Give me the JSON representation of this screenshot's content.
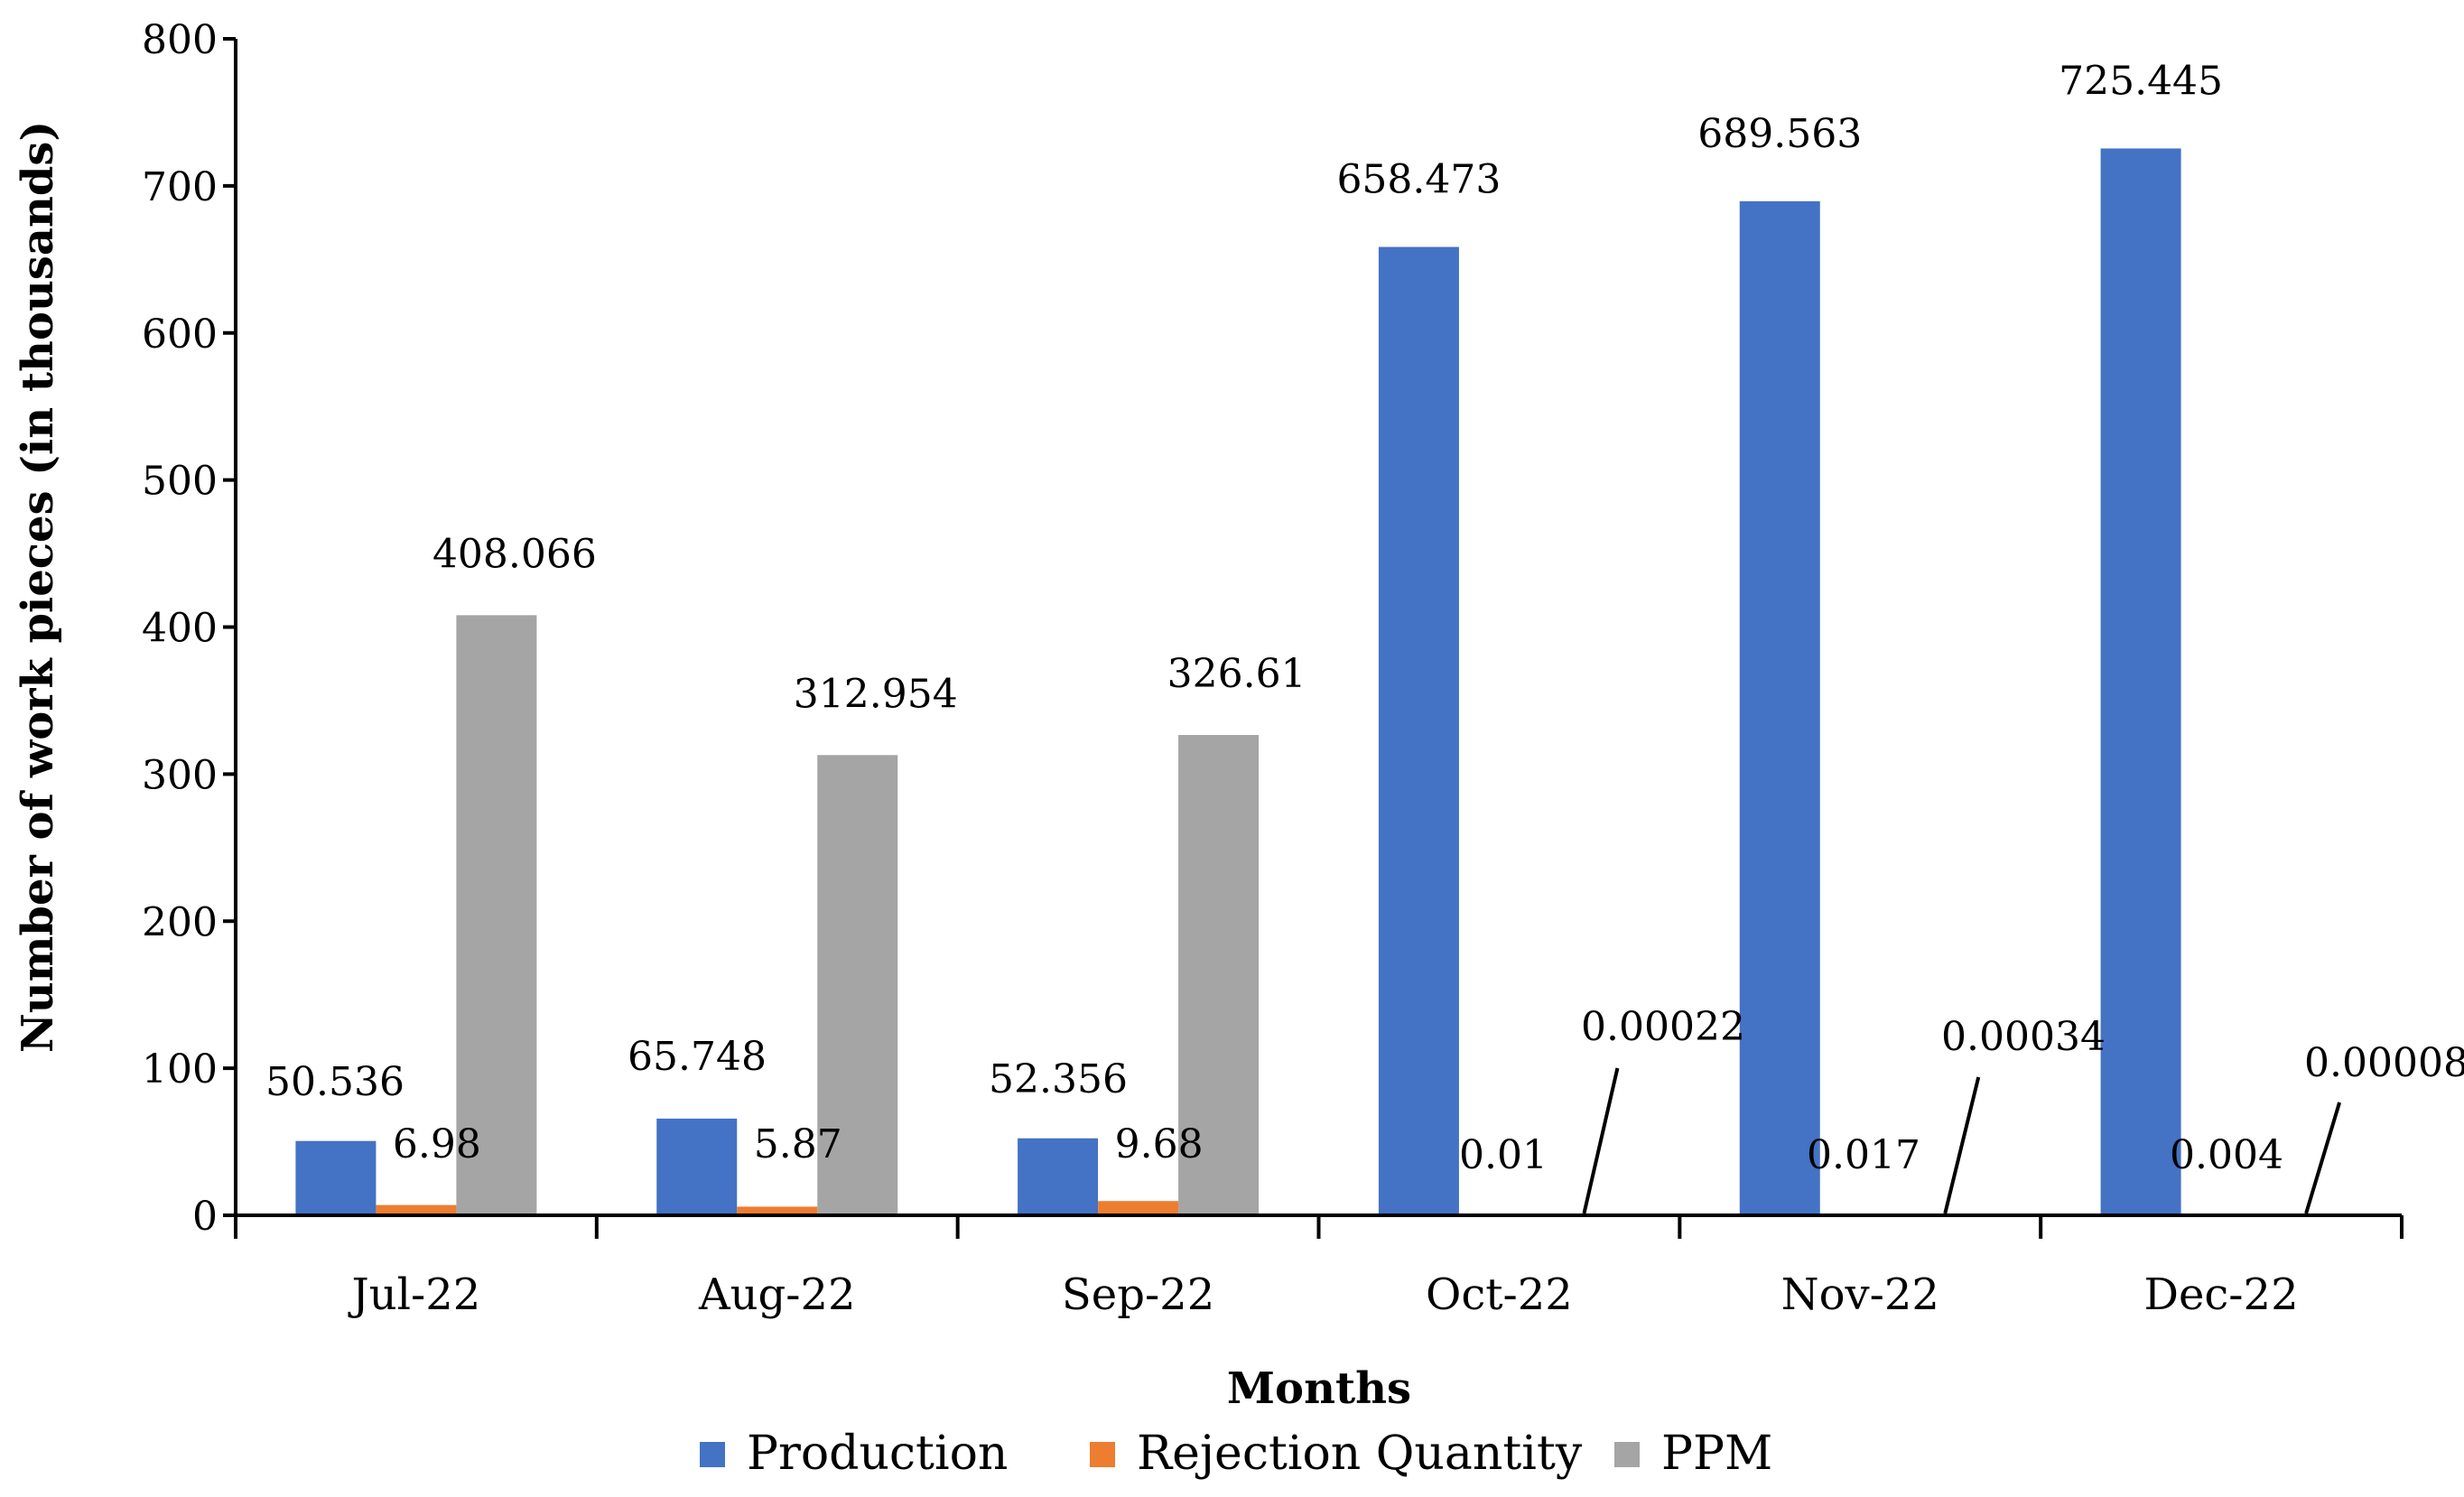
{
  "chart_data": {
    "type": "bar",
    "title": "",
    "xlabel": "Months",
    "ylabel": "Number of work pieces  (in thousands)",
    "ylim": [
      0,
      800
    ],
    "yticks": [
      0,
      100,
      200,
      300,
      400,
      500,
      600,
      700,
      800
    ],
    "grid": false,
    "legend_position": "bottom",
    "categories": [
      "Jul-22",
      "Aug-22",
      "Sep-22",
      "Oct-22",
      "Nov-22",
      "Dec-22"
    ],
    "series": [
      {
        "name": "Production",
        "color": "#4472C4",
        "values": [
          50.536,
          65.748,
          52.356,
          658.473,
          689.563,
          725.445
        ],
        "labels": [
          "50.536",
          "65.748",
          "52.356",
          "658.473",
          "689.563",
          "725.445"
        ]
      },
      {
        "name": "Rejection Quantity",
        "color": "#ED7D31",
        "values": [
          6.98,
          5.87,
          9.68,
          0.01,
          0.017,
          0.004
        ],
        "labels": [
          "6.98",
          "5.87",
          "9.68",
          "0.01",
          "0.017",
          "0.004"
        ]
      },
      {
        "name": "PPM",
        "color": "#A5A5A5",
        "values": [
          408.066,
          312.954,
          326.61,
          0.00022,
          0.00034,
          8e-05
        ],
        "labels": [
          "408.066",
          "312.954",
          "326.61",
          "0.00022",
          "0.00034",
          "0.00008"
        ]
      }
    ]
  }
}
